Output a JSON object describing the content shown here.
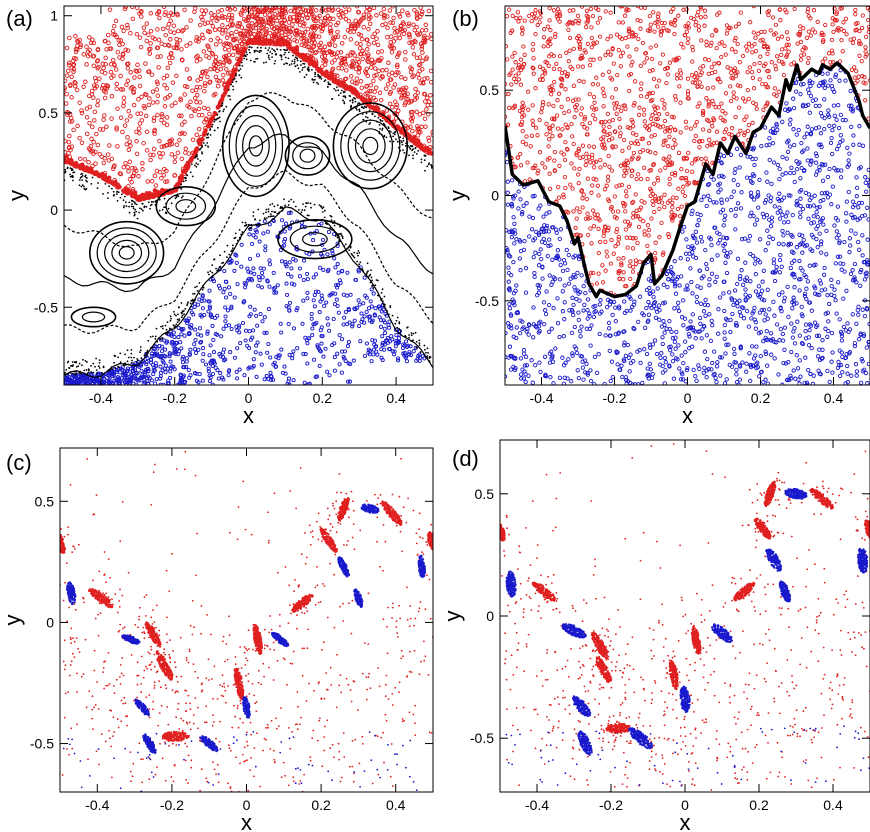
{
  "chart_data": [
    {
      "type": "scatter",
      "panel_label": "(a)",
      "xlabel": "x",
      "ylabel": "y",
      "xlim": [
        -0.5,
        0.5
      ],
      "ylim": [
        -0.9,
        1.05
      ],
      "xticks": [
        -0.4,
        -0.2,
        0,
        0.2,
        0.4
      ],
      "xtick_labels": [
        "-0.4",
        "-0.2",
        "0",
        "0.2",
        "0.4"
      ],
      "yticks": [
        -0.5,
        0,
        0.5,
        1
      ],
      "ytick_labels": [
        "-0.5",
        "0",
        "0.5",
        "1"
      ],
      "colors": {
        "upper": "#e02020",
        "lower": "#1a1acc",
        "separatrix": "#000000"
      },
      "boundary_upper": {
        "x": [
          -0.5,
          -0.4,
          -0.3,
          -0.2,
          -0.1,
          0.0,
          0.1,
          0.2,
          0.3,
          0.4,
          0.5
        ],
        "y": [
          0.25,
          0.17,
          0.05,
          0.09,
          0.45,
          0.86,
          0.85,
          0.7,
          0.58,
          0.42,
          0.27
        ]
      },
      "boundary_lower": {
        "x": [
          -0.5,
          -0.4,
          -0.3,
          -0.2,
          -0.1,
          0.0,
          0.1,
          0.2,
          0.3,
          0.4,
          0.5
        ],
        "y": [
          -0.85,
          -0.84,
          -0.78,
          -0.6,
          -0.35,
          -0.1,
          0.0,
          -0.05,
          -0.28,
          -0.6,
          -0.8
        ]
      },
      "islands": [
        {
          "x": -0.33,
          "y": -0.22,
          "rx": 0.1,
          "ry": 0.16,
          "rings": 5
        },
        {
          "x": 0.02,
          "y": 0.33,
          "rx": 0.09,
          "ry": 0.26,
          "rings": 5
        },
        {
          "x": 0.33,
          "y": 0.33,
          "rx": 0.1,
          "ry": 0.22,
          "rings": 5
        },
        {
          "x": -0.17,
          "y": 0.02,
          "rx": 0.08,
          "ry": 0.1,
          "rings": 3
        },
        {
          "x": 0.18,
          "y": -0.15,
          "rx": 0.1,
          "ry": 0.1,
          "rings": 3
        },
        {
          "x": -0.42,
          "y": -0.55,
          "rx": 0.06,
          "ry": 0.05,
          "rings": 2
        },
        {
          "x": 0.16,
          "y": 0.28,
          "rx": 0.06,
          "ry": 0.1,
          "rings": 3
        }
      ]
    },
    {
      "type": "scatter",
      "panel_label": "(b)",
      "xlabel": "x",
      "ylabel": "y",
      "xlim": [
        -0.5,
        0.5
      ],
      "ylim": [
        -0.9,
        0.9
      ],
      "xticks": [
        -0.4,
        -0.2,
        0,
        0.2,
        0.4
      ],
      "xtick_labels": [
        "-0.4",
        "-0.2",
        "0",
        "0.2",
        "0.4"
      ],
      "yticks": [
        -0.5,
        0,
        0.5
      ],
      "ytick_labels": [
        "-0.5",
        "0",
        "0.5"
      ],
      "colors": {
        "upper": "#e02020",
        "lower": "#1a1acc",
        "boundary": "#000000"
      },
      "boundary": {
        "x": [
          -0.5,
          -0.48,
          -0.45,
          -0.41,
          -0.38,
          -0.35,
          -0.33,
          -0.31,
          -0.3,
          -0.28,
          -0.27,
          -0.25,
          -0.24,
          -0.2,
          -0.17,
          -0.14,
          -0.12,
          -0.1,
          -0.09,
          -0.07,
          -0.04,
          -0.02,
          0.0,
          0.02,
          0.05,
          0.07,
          0.09,
          0.11,
          0.13,
          0.16,
          0.18,
          0.2,
          0.23,
          0.25,
          0.27,
          0.28,
          0.3,
          0.31,
          0.34,
          0.36,
          0.37,
          0.39,
          0.41,
          0.44,
          0.47,
          0.48,
          0.5
        ],
        "y": [
          0.33,
          0.1,
          0.05,
          0.07,
          -0.03,
          -0.05,
          -0.12,
          -0.23,
          -0.2,
          -0.35,
          -0.42,
          -0.48,
          -0.45,
          -0.48,
          -0.47,
          -0.43,
          -0.32,
          -0.28,
          -0.42,
          -0.38,
          -0.26,
          -0.15,
          -0.05,
          -0.03,
          0.15,
          0.1,
          0.25,
          0.2,
          0.28,
          0.2,
          0.3,
          0.32,
          0.42,
          0.38,
          0.55,
          0.5,
          0.62,
          0.55,
          0.6,
          0.58,
          0.62,
          0.6,
          0.63,
          0.58,
          0.45,
          0.38,
          0.32
        ]
      }
    },
    {
      "type": "scatter",
      "panel_label": "(c)",
      "xlabel": "x",
      "ylabel": "y",
      "xlim": [
        -0.5,
        0.5
      ],
      "ylim": [
        -0.7,
        0.72
      ],
      "xticks": [
        -0.4,
        -0.2,
        0,
        0.2,
        0.4
      ],
      "xtick_labels": [
        "-0.4",
        "-0.2",
        "0",
        "0.2",
        "0.4"
      ],
      "yticks": [
        -0.5,
        0,
        0.5
      ],
      "ytick_labels": [
        "-0.5",
        "0",
        "0.5"
      ],
      "colors": {
        "red": "#e02020",
        "blue": "#1a1acc"
      },
      "red_islands": [
        {
          "x": -0.39,
          "y": 0.1,
          "rx": 0.042,
          "ry": 0.01,
          "angle": -38
        },
        {
          "x": -0.25,
          "y": -0.05,
          "rx": 0.04,
          "ry": 0.009,
          "angle": -60
        },
        {
          "x": -0.22,
          "y": -0.18,
          "rx": 0.045,
          "ry": 0.01,
          "angle": -62
        },
        {
          "x": -0.19,
          "y": -0.47,
          "rx": 0.035,
          "ry": 0.012,
          "angle": 0
        },
        {
          "x": -0.02,
          "y": -0.25,
          "rx": 0.045,
          "ry": 0.009,
          "angle": -80
        },
        {
          "x": 0.03,
          "y": -0.07,
          "rx": 0.04,
          "ry": 0.009,
          "angle": -80
        },
        {
          "x": 0.15,
          "y": 0.08,
          "rx": 0.035,
          "ry": 0.01,
          "angle": 40
        },
        {
          "x": 0.22,
          "y": 0.34,
          "rx": 0.04,
          "ry": 0.009,
          "angle": -55
        },
        {
          "x": 0.26,
          "y": 0.47,
          "rx": 0.035,
          "ry": 0.009,
          "angle": 70
        },
        {
          "x": 0.39,
          "y": 0.45,
          "rx": 0.04,
          "ry": 0.01,
          "angle": -50
        },
        {
          "x": -0.5,
          "y": 0.33,
          "rx": 0.03,
          "ry": 0.01,
          "angle": -70
        },
        {
          "x": 0.5,
          "y": 0.33,
          "rx": 0.03,
          "ry": 0.01,
          "angle": -70
        }
      ],
      "blue_islands": [
        {
          "x": -0.47,
          "y": 0.12,
          "rx": 0.03,
          "ry": 0.01,
          "angle": -80
        },
        {
          "x": -0.31,
          "y": -0.07,
          "rx": 0.025,
          "ry": 0.008,
          "angle": -20
        },
        {
          "x": -0.28,
          "y": -0.35,
          "rx": 0.028,
          "ry": 0.008,
          "angle": -50
        },
        {
          "x": -0.26,
          "y": -0.5,
          "rx": 0.03,
          "ry": 0.009,
          "angle": -60
        },
        {
          "x": -0.1,
          "y": -0.5,
          "rx": 0.03,
          "ry": 0.009,
          "angle": -40
        },
        {
          "x": 0.0,
          "y": -0.35,
          "rx": 0.03,
          "ry": 0.008,
          "angle": -80
        },
        {
          "x": 0.09,
          "y": -0.07,
          "rx": 0.028,
          "ry": 0.008,
          "angle": -40
        },
        {
          "x": 0.26,
          "y": 0.23,
          "rx": 0.03,
          "ry": 0.008,
          "angle": -65
        },
        {
          "x": 0.3,
          "y": 0.1,
          "rx": 0.025,
          "ry": 0.008,
          "angle": -70
        },
        {
          "x": 0.33,
          "y": 0.47,
          "rx": 0.025,
          "ry": 0.01,
          "angle": -15
        },
        {
          "x": 0.47,
          "y": 0.23,
          "rx": 0.03,
          "ry": 0.008,
          "angle": -85
        }
      ]
    },
    {
      "type": "scatter",
      "panel_label": "(d)",
      "xlabel": "x",
      "ylabel": "y",
      "xlim": [
        -0.5,
        0.5
      ],
      "ylim": [
        -0.72,
        0.72
      ],
      "xticks": [
        -0.4,
        -0.2,
        0,
        0.2,
        0.4
      ],
      "xtick_labels": [
        "-0.4",
        "-0.2",
        "0",
        "0.2",
        "0.4"
      ],
      "yticks": [
        -0.5,
        0,
        0.5
      ],
      "ytick_labels": [
        "-0.5",
        "0",
        "0.5"
      ],
      "colors": {
        "red": "#e02020",
        "blue": "#1a1acc"
      },
      "red_islands": [
        {
          "x": -0.38,
          "y": 0.1,
          "rx": 0.04,
          "ry": 0.01,
          "angle": -38
        },
        {
          "x": -0.23,
          "y": -0.12,
          "rx": 0.04,
          "ry": 0.01,
          "angle": -60
        },
        {
          "x": -0.22,
          "y": -0.22,
          "rx": 0.04,
          "ry": 0.01,
          "angle": -62
        },
        {
          "x": -0.18,
          "y": -0.46,
          "rx": 0.035,
          "ry": 0.012,
          "angle": 0
        },
        {
          "x": -0.03,
          "y": -0.24,
          "rx": 0.04,
          "ry": 0.009,
          "angle": -80
        },
        {
          "x": 0.03,
          "y": -0.1,
          "rx": 0.04,
          "ry": 0.009,
          "angle": -80
        },
        {
          "x": 0.16,
          "y": 0.1,
          "rx": 0.035,
          "ry": 0.01,
          "angle": 40
        },
        {
          "x": 0.21,
          "y": 0.36,
          "rx": 0.035,
          "ry": 0.01,
          "angle": -55
        },
        {
          "x": 0.23,
          "y": 0.5,
          "rx": 0.035,
          "ry": 0.009,
          "angle": 70
        },
        {
          "x": 0.37,
          "y": 0.48,
          "rx": 0.04,
          "ry": 0.01,
          "angle": -40
        },
        {
          "x": -0.5,
          "y": 0.35,
          "rx": 0.03,
          "ry": 0.01,
          "angle": -70
        },
        {
          "x": 0.5,
          "y": 0.35,
          "rx": 0.03,
          "ry": 0.01,
          "angle": -70
        }
      ],
      "blue_islands": [
        {
          "x": -0.47,
          "y": 0.13,
          "rx": 0.035,
          "ry": 0.012,
          "angle": -85
        },
        {
          "x": -0.3,
          "y": -0.06,
          "rx": 0.035,
          "ry": 0.012,
          "angle": -25
        },
        {
          "x": -0.28,
          "y": -0.37,
          "rx": 0.035,
          "ry": 0.012,
          "angle": -50
        },
        {
          "x": -0.27,
          "y": -0.52,
          "rx": 0.035,
          "ry": 0.012,
          "angle": -65
        },
        {
          "x": -0.12,
          "y": -0.5,
          "rx": 0.04,
          "ry": 0.013,
          "angle": -40
        },
        {
          "x": 0.0,
          "y": -0.34,
          "rx": 0.035,
          "ry": 0.012,
          "angle": -85
        },
        {
          "x": 0.1,
          "y": -0.07,
          "rx": 0.035,
          "ry": 0.012,
          "angle": -40
        },
        {
          "x": 0.24,
          "y": 0.23,
          "rx": 0.035,
          "ry": 0.012,
          "angle": -60
        },
        {
          "x": 0.27,
          "y": 0.1,
          "rx": 0.03,
          "ry": 0.01,
          "angle": -70
        },
        {
          "x": 0.3,
          "y": 0.5,
          "rx": 0.03,
          "ry": 0.012,
          "angle": -10
        },
        {
          "x": 0.48,
          "y": 0.23,
          "rx": 0.035,
          "ry": 0.012,
          "angle": -85
        }
      ]
    }
  ]
}
